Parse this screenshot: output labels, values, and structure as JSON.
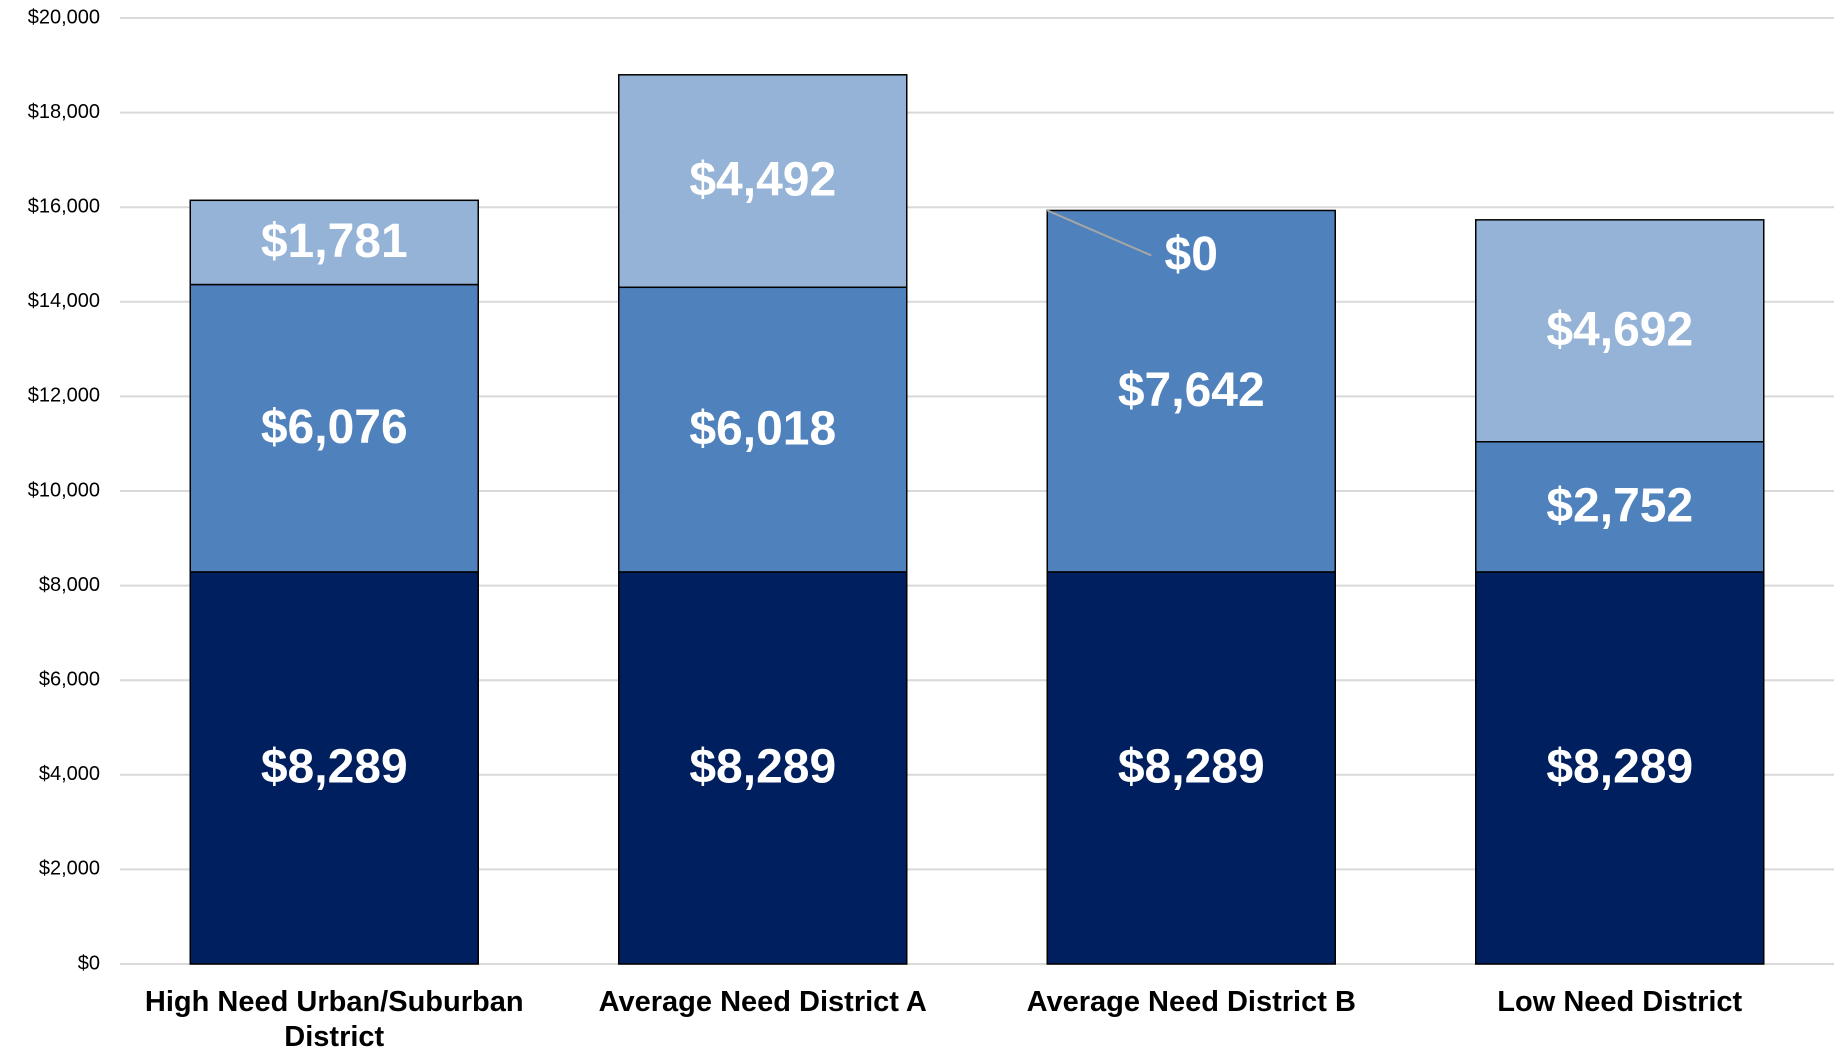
{
  "chart_data": {
    "type": "stacked_bar",
    "categories": [
      "High Need Urban/Suburban District",
      "Average Need District A",
      "Average Need District B",
      "Low Need District"
    ],
    "series": [
      {
        "color": "#001f5f",
        "values": [
          8289,
          8289,
          8289,
          8289
        ],
        "value_labels": [
          "$8,289",
          "$8,289",
          "$8,289",
          "$8,289"
        ]
      },
      {
        "color": "#4f81bd",
        "values": [
          6076,
          6018,
          7642,
          2752
        ],
        "value_labels": [
          "$6,076",
          "$6,018",
          "$7,642",
          "$2,752"
        ]
      },
      {
        "color": "#95b3d7",
        "values": [
          1781,
          4492,
          0,
          4692
        ],
        "value_labels": [
          "$1,781",
          "$4,492",
          "$0",
          "$4,692"
        ]
      }
    ],
    "ylim": [
      0,
      20000
    ],
    "yticks": [
      {
        "value": 0,
        "label": "$0"
      },
      {
        "value": 2000,
        "label": "$2,000"
      },
      {
        "value": 4000,
        "label": "$4,000"
      },
      {
        "value": 6000,
        "label": "$6,000"
      },
      {
        "value": 8000,
        "label": "$8,000"
      },
      {
        "value": 10000,
        "label": "$10,000"
      },
      {
        "value": 12000,
        "label": "$12,000"
      },
      {
        "value": 14000,
        "label": "$14,000"
      },
      {
        "value": 16000,
        "label": "$16,000"
      },
      {
        "value": 18000,
        "label": "$18,000"
      },
      {
        "value": 20000,
        "label": "$20,000"
      }
    ],
    "grid": true
  }
}
